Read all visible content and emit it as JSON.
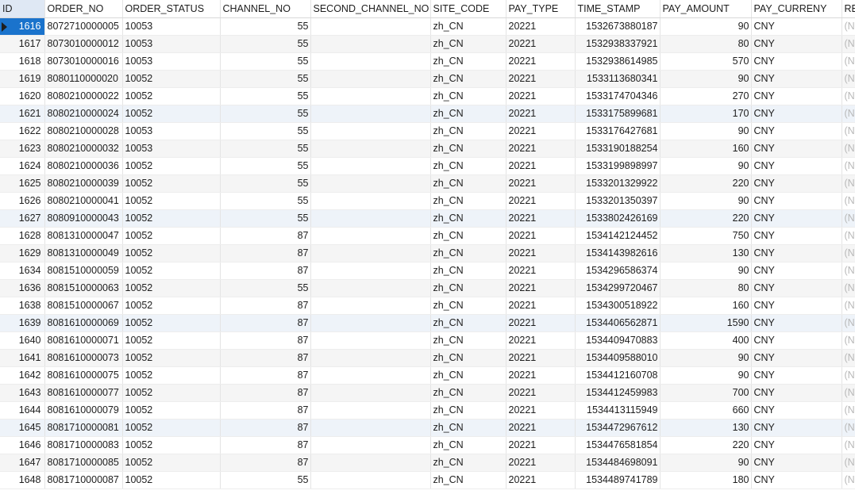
{
  "columns": [
    "ID",
    "ORDER_NO",
    "ORDER_STATUS",
    "CHANNEL_NO",
    "SECOND_CHANNEL_NO",
    "SITE_CODE",
    "PAY_TYPE",
    "TIME_STAMP",
    "PAY_AMOUNT",
    "PAY_CURRENY",
    "RE"
  ],
  "null_text": "(Nu",
  "selected_row": 0,
  "highlight_rows": [
    5,
    11,
    17,
    23
  ],
  "colors": {
    "selection": "#1a73cc",
    "header_active": "#dfe8f4",
    "row_alt": "#f5f5f5",
    "row_highlight": "#eef3f9",
    "null_text": "#b8b8b8"
  },
  "icons": {
    "row_indicator": "triangle-right-icon"
  },
  "rows": [
    {
      "id": "1616",
      "order_no": "8072710000005",
      "status": "10053",
      "channel": "55",
      "second": "",
      "site": "zh_CN",
      "pay_type": "20221",
      "ts": "1532673880187",
      "amount": "90",
      "currency": "CNY"
    },
    {
      "id": "1617",
      "order_no": "8073010000012",
      "status": "10053",
      "channel": "55",
      "second": "",
      "site": "zh_CN",
      "pay_type": "20221",
      "ts": "1532938337921",
      "amount": "80",
      "currency": "CNY"
    },
    {
      "id": "1618",
      "order_no": "8073010000016",
      "status": "10053",
      "channel": "55",
      "second": "",
      "site": "zh_CN",
      "pay_type": "20221",
      "ts": "1532938614985",
      "amount": "570",
      "currency": "CNY"
    },
    {
      "id": "1619",
      "order_no": "8080110000020",
      "status": "10052",
      "channel": "55",
      "second": "",
      "site": "zh_CN",
      "pay_type": "20221",
      "ts": "1533113680341",
      "amount": "90",
      "currency": "CNY"
    },
    {
      "id": "1620",
      "order_no": "8080210000022",
      "status": "10052",
      "channel": "55",
      "second": "",
      "site": "zh_CN",
      "pay_type": "20221",
      "ts": "1533174704346",
      "amount": "270",
      "currency": "CNY"
    },
    {
      "id": "1621",
      "order_no": "8080210000024",
      "status": "10052",
      "channel": "55",
      "second": "",
      "site": "zh_CN",
      "pay_type": "20221",
      "ts": "1533175899681",
      "amount": "170",
      "currency": "CNY"
    },
    {
      "id": "1622",
      "order_no": "8080210000028",
      "status": "10053",
      "channel": "55",
      "second": "",
      "site": "zh_CN",
      "pay_type": "20221",
      "ts": "1533176427681",
      "amount": "90",
      "currency": "CNY"
    },
    {
      "id": "1623",
      "order_no": "8080210000032",
      "status": "10053",
      "channel": "55",
      "second": "",
      "site": "zh_CN",
      "pay_type": "20221",
      "ts": "1533190188254",
      "amount": "160",
      "currency": "CNY"
    },
    {
      "id": "1624",
      "order_no": "8080210000036",
      "status": "10052",
      "channel": "55",
      "second": "",
      "site": "zh_CN",
      "pay_type": "20221",
      "ts": "1533199898997",
      "amount": "90",
      "currency": "CNY"
    },
    {
      "id": "1625",
      "order_no": "8080210000039",
      "status": "10052",
      "channel": "55",
      "second": "",
      "site": "zh_CN",
      "pay_type": "20221",
      "ts": "1533201329922",
      "amount": "220",
      "currency": "CNY"
    },
    {
      "id": "1626",
      "order_no": "8080210000041",
      "status": "10052",
      "channel": "55",
      "second": "",
      "site": "zh_CN",
      "pay_type": "20221",
      "ts": "1533201350397",
      "amount": "90",
      "currency": "CNY"
    },
    {
      "id": "1627",
      "order_no": "8080910000043",
      "status": "10052",
      "channel": "55",
      "second": "",
      "site": "zh_CN",
      "pay_type": "20221",
      "ts": "1533802426169",
      "amount": "220",
      "currency": "CNY"
    },
    {
      "id": "1628",
      "order_no": "8081310000047",
      "status": "10052",
      "channel": "87",
      "second": "",
      "site": "zh_CN",
      "pay_type": "20221",
      "ts": "1534142124452",
      "amount": "750",
      "currency": "CNY"
    },
    {
      "id": "1629",
      "order_no": "8081310000049",
      "status": "10052",
      "channel": "87",
      "second": "",
      "site": "zh_CN",
      "pay_type": "20221",
      "ts": "1534143982616",
      "amount": "130",
      "currency": "CNY"
    },
    {
      "id": "1634",
      "order_no": "8081510000059",
      "status": "10052",
      "channel": "87",
      "second": "",
      "site": "zh_CN",
      "pay_type": "20221",
      "ts": "1534296586374",
      "amount": "90",
      "currency": "CNY"
    },
    {
      "id": "1636",
      "order_no": "8081510000063",
      "status": "10052",
      "channel": "55",
      "second": "",
      "site": "zh_CN",
      "pay_type": "20221",
      "ts": "1534299720467",
      "amount": "80",
      "currency": "CNY"
    },
    {
      "id": "1638",
      "order_no": "8081510000067",
      "status": "10052",
      "channel": "87",
      "second": "",
      "site": "zh_CN",
      "pay_type": "20221",
      "ts": "1534300518922",
      "amount": "160",
      "currency": "CNY"
    },
    {
      "id": "1639",
      "order_no": "8081610000069",
      "status": "10052",
      "channel": "87",
      "second": "",
      "site": "zh_CN",
      "pay_type": "20221",
      "ts": "1534406562871",
      "amount": "1590",
      "currency": "CNY"
    },
    {
      "id": "1640",
      "order_no": "8081610000071",
      "status": "10052",
      "channel": "87",
      "second": "",
      "site": "zh_CN",
      "pay_type": "20221",
      "ts": "1534409470883",
      "amount": "400",
      "currency": "CNY"
    },
    {
      "id": "1641",
      "order_no": "8081610000073",
      "status": "10052",
      "channel": "87",
      "second": "",
      "site": "zh_CN",
      "pay_type": "20221",
      "ts": "1534409588010",
      "amount": "90",
      "currency": "CNY"
    },
    {
      "id": "1642",
      "order_no": "8081610000075",
      "status": "10052",
      "channel": "87",
      "second": "",
      "site": "zh_CN",
      "pay_type": "20221",
      "ts": "1534412160708",
      "amount": "90",
      "currency": "CNY"
    },
    {
      "id": "1643",
      "order_no": "8081610000077",
      "status": "10052",
      "channel": "87",
      "second": "",
      "site": "zh_CN",
      "pay_type": "20221",
      "ts": "1534412459983",
      "amount": "700",
      "currency": "CNY"
    },
    {
      "id": "1644",
      "order_no": "8081610000079",
      "status": "10052",
      "channel": "87",
      "second": "",
      "site": "zh_CN",
      "pay_type": "20221",
      "ts": "1534413115949",
      "amount": "660",
      "currency": "CNY"
    },
    {
      "id": "1645",
      "order_no": "8081710000081",
      "status": "10052",
      "channel": "87",
      "second": "",
      "site": "zh_CN",
      "pay_type": "20221",
      "ts": "1534472967612",
      "amount": "130",
      "currency": "CNY"
    },
    {
      "id": "1646",
      "order_no": "8081710000083",
      "status": "10052",
      "channel": "87",
      "second": "",
      "site": "zh_CN",
      "pay_type": "20221",
      "ts": "1534476581854",
      "amount": "220",
      "currency": "CNY"
    },
    {
      "id": "1647",
      "order_no": "8081710000085",
      "status": "10052",
      "channel": "87",
      "second": "",
      "site": "zh_CN",
      "pay_type": "20221",
      "ts": "1534484698091",
      "amount": "90",
      "currency": "CNY"
    },
    {
      "id": "1648",
      "order_no": "8081710000087",
      "status": "10052",
      "channel": "55",
      "second": "",
      "site": "zh_CN",
      "pay_type": "20221",
      "ts": "1534489741789",
      "amount": "180",
      "currency": "CNY"
    }
  ]
}
